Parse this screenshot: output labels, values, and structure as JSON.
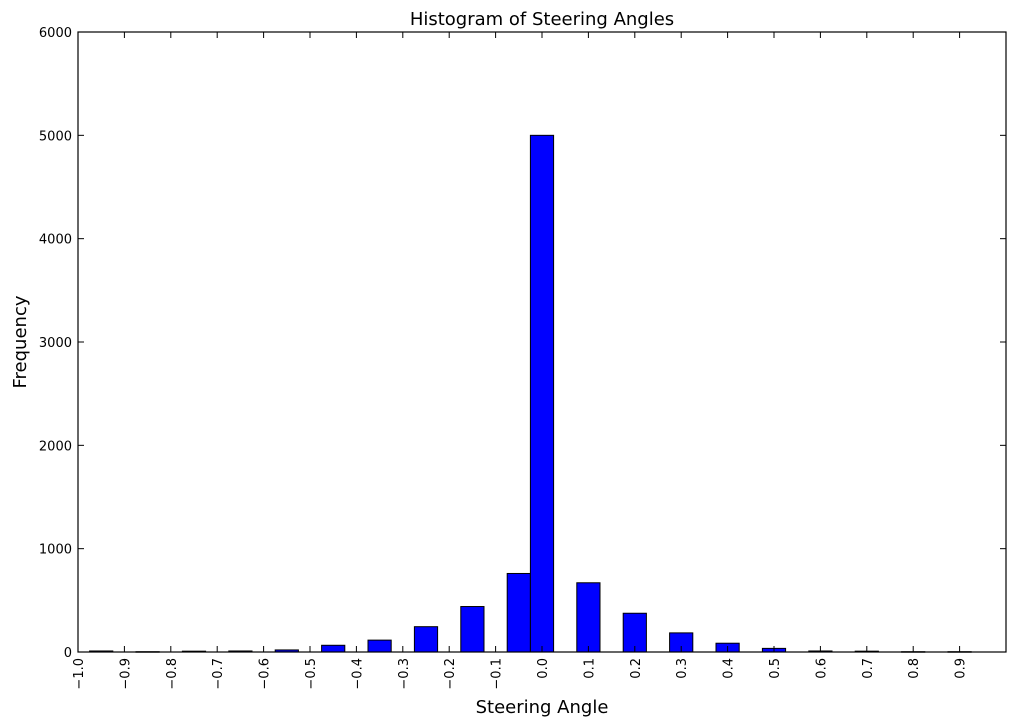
{
  "chart_data": {
    "type": "bar",
    "title": "Histogram of Steering Angles",
    "xlabel": "Steering Angle",
    "ylabel": "Frequency",
    "x": [
      -0.95,
      -0.85,
      -0.75,
      -0.65,
      -0.55,
      -0.45,
      -0.35,
      -0.25,
      -0.15,
      -0.05,
      0.0,
      0.1,
      0.2,
      0.3,
      0.4,
      0.5,
      0.6,
      0.7,
      0.8,
      0.9
    ],
    "values": [
      10,
      3,
      8,
      10,
      20,
      65,
      115,
      245,
      440,
      760,
      5000,
      670,
      375,
      185,
      85,
      35,
      10,
      8,
      3,
      3
    ],
    "bar_width": 0.05,
    "xlim": [
      -1.0,
      1.0
    ],
    "ylim": [
      0,
      6000
    ],
    "xticks": [
      -1.0,
      -0.9,
      -0.8,
      -0.7,
      -0.6,
      -0.5,
      -0.4,
      -0.3,
      -0.2,
      -0.1,
      0.0,
      0.1,
      0.2,
      0.3,
      0.4,
      0.5,
      0.6,
      0.7,
      0.8,
      0.9
    ],
    "xtick_labels": [
      "−1.0",
      "−0.9",
      "−0.8",
      "−0.7",
      "−0.6",
      "−0.5",
      "−0.4",
      "−0.3",
      "−0.2",
      "−0.1",
      "0.0",
      "0.1",
      "0.2",
      "0.3",
      "0.4",
      "0.5",
      "0.6",
      "0.7",
      "0.8",
      "0.9"
    ],
    "yticks": [
      0,
      1000,
      2000,
      3000,
      4000,
      5000,
      6000
    ],
    "ytick_labels": [
      "0",
      "1000",
      "2000",
      "3000",
      "4000",
      "5000",
      "6000"
    ],
    "bar_color": "#0000ff",
    "edge_color": "#000000",
    "grid": false,
    "legend": false
  }
}
